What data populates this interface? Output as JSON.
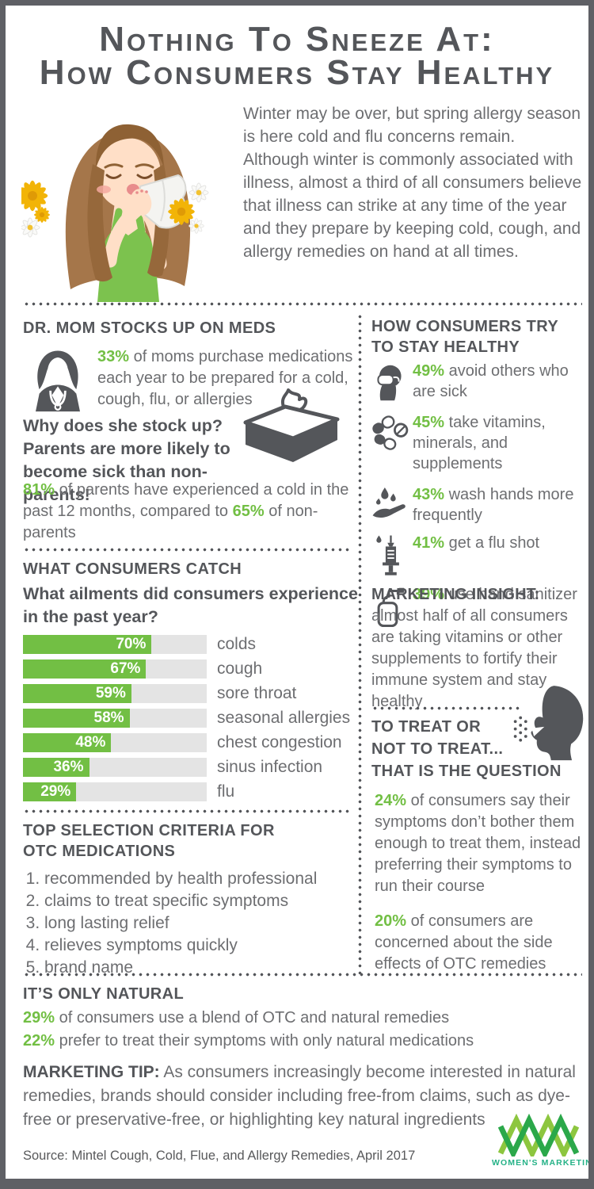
{
  "colors": {
    "accent_green": "#72BF44",
    "heading_gray": "#54565A",
    "body_gray": "#6D6E71",
    "frame_gray": "#5F6065",
    "logo_light_green": "#8DC63F",
    "logo_dark_green": "#2BA84A",
    "logo_text_teal": "#25B287"
  },
  "title": {
    "line1": "Nothing To Sneeze At:",
    "line2": "How Consumers Stay Healthy"
  },
  "intro": "Winter may be over, but spring allergy season is here cold and flu concerns remain. Although winter is commonly associated with illness, almost a third of all consumers believe that illness can strike at any time of the year and they prepare by keeping cold, cough, and allergy remedies on hand at all times.",
  "illustration": "sneezing-woman-with-tissue-and-flowers",
  "dr_mom": {
    "header": "DR. MOM STOCKS UP ON MEDS",
    "icon": "female-doctor-icon",
    "stat_pct": "33%",
    "stat_rest": "of moms purchase medications each year to be prepared for a cold, cough, flu, or allergies",
    "why_bold": "Why does she stock up? Parents are more likely to become sick than non-parents!",
    "tissue_icon": "tissue-box-icon",
    "parents_pct1": "81%",
    "parents_t1": "of parents have experienced a cold in the past 12 months, compared to",
    "parents_pct2": "65%",
    "parents_t2": "of non-parents"
  },
  "stay_healthy": {
    "header_line1": "HOW CONSUMERS TRY",
    "header_line2": "TO STAY HEALTHY",
    "items": [
      {
        "icon": "face-mask-icon",
        "pct": "49%",
        "text": "avoid others who are sick"
      },
      {
        "icon": "pills-icon",
        "pct": "45%",
        "text": "take vitamins, minerals, and supplements"
      },
      {
        "icon": "wash-hands-icon",
        "pct": "43%",
        "text": "wash hands more frequently"
      },
      {
        "icon": "syringe-icon",
        "pct": "41%",
        "text": "get a flu shot"
      },
      {
        "icon": "hand-sanitizer-icon",
        "pct": "39%",
        "text": "use hand sanitizer"
      }
    ]
  },
  "chart_data": {
    "type": "bar",
    "title": "WHAT CONSUMERS CATCH",
    "question": "What ailments did consumers experience in the past year?",
    "categories": [
      "colds",
      "cough",
      "sore throat",
      "seasonal allergies",
      "chest congestion",
      "sinus infection",
      "flu"
    ],
    "values": [
      70,
      67,
      59,
      58,
      48,
      36,
      29
    ],
    "value_labels": [
      "70%",
      "67%",
      "59%",
      "58%",
      "48%",
      "36%",
      "29%"
    ],
    "unit": "%",
    "xlim": [
      0,
      100
    ],
    "bar_color": "#72BF44",
    "track_color": "#E4E4E4",
    "value_label_position": "inside-right",
    "category_label_position": "right"
  },
  "criteria": {
    "header_line1": "TOP SELECTION CRITERIA FOR",
    "header_line2": "OTC MEDICATIONS",
    "items": [
      "recommended by health professional",
      "claims to treat specific symptoms",
      "long lasting relief",
      "relieves symptoms quickly",
      "brand name"
    ]
  },
  "marketing_insight": {
    "label": "MARKETING INSIGHT:",
    "text": "almost half of all consumers are taking vitamins or other supplements to fortify their immune system and stay healthy"
  },
  "treat": {
    "icon": "sneezing-head-icon",
    "header_line1": "TO TREAT OR",
    "header_line2": "NOT TO TREAT...",
    "header_line3": "THAT IS THE QUESTION",
    "p1_pct": "24%",
    "p1_text": "of consumers say their symptoms don’t bother them enough to treat them, instead preferring their symptoms to run their course",
    "p2_pct": "20%",
    "p2_text": "of consumers are concerned about the side effects of OTC remedies"
  },
  "natural": {
    "header": "IT’S ONLY NATURAL",
    "line1_pct": "29%",
    "line1_text": "of consumers use a blend of OTC and natural remedies",
    "line2_pct": "22%",
    "line2_text": "prefer to treat their symptoms with only natural medications",
    "tip_label": "MARKETING TIP:",
    "tip_text": "As consumers increasingly become interested in natural remedies, brands should consider including free-from claims, such as dye-free or preservative-free, or highlighting key natural ingredients"
  },
  "footer": {
    "source": "Source: Mintel Cough, Cold, Flue, and Allergy Remedies, April 2017",
    "logo_icon": "womens-marketing-logo",
    "logo_text": "WOMEN'S MARKETING"
  }
}
